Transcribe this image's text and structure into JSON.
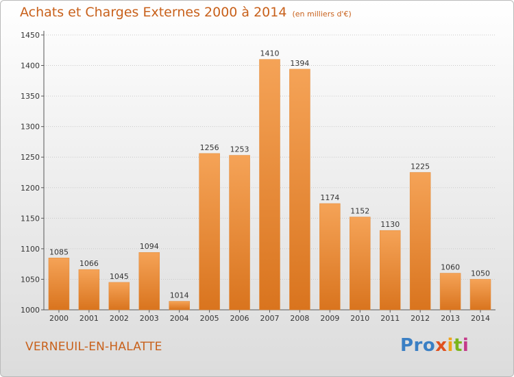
{
  "title": "Achats et Charges Externes 2000 à 2014",
  "subtitle": "(en milliers d'€)",
  "commune": "VERNEUIL-EN-HALATTE",
  "logo_text": "Proxiti",
  "colors": {
    "bar_top": "#f5a357",
    "bar_bottom": "#d9741e",
    "title": "#c8601a"
  },
  "chart_data": {
    "type": "bar",
    "title": "Achats et Charges Externes 2000 à 2014",
    "subtitle": "(en milliers d'€)",
    "categories": [
      "2000",
      "2001",
      "2002",
      "2003",
      "2004",
      "2005",
      "2006",
      "2007",
      "2008",
      "2009",
      "2010",
      "2011",
      "2012",
      "2013",
      "2014"
    ],
    "values": [
      1085,
      1066,
      1045,
      1094,
      1014,
      1256,
      1253,
      1410,
      1394,
      1174,
      1152,
      1130,
      1225,
      1060,
      1050
    ],
    "ylim": [
      1000,
      1450
    ],
    "yticks": [
      1000,
      1050,
      1100,
      1150,
      1200,
      1250,
      1300,
      1350,
      1400,
      1450
    ],
    "grid": true,
    "xlabel": "",
    "ylabel": ""
  }
}
